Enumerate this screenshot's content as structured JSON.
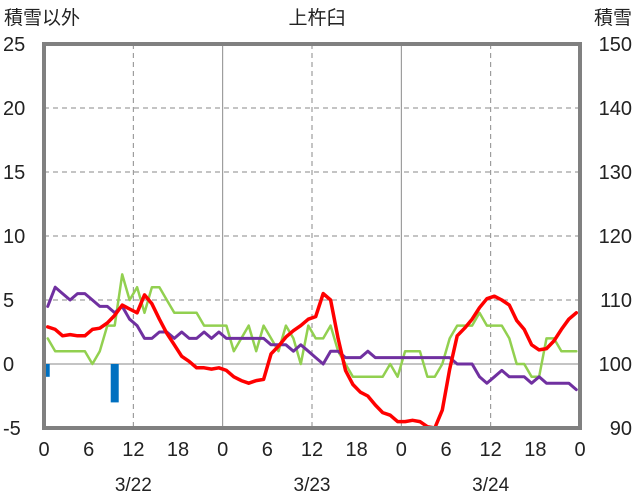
{
  "chart_data": {
    "type": "line",
    "title": "上杵臼",
    "ylabel_left": "積雪以外",
    "ylabel_right": "積雪",
    "ylim_left": [
      -5,
      25
    ],
    "ylim_right": [
      90,
      150
    ],
    "yticks_left": [
      25,
      20,
      15,
      10,
      5,
      0,
      -5
    ],
    "yticks_right": [
      150,
      140,
      130,
      120,
      110,
      100,
      90
    ],
    "x_hours_range": [
      0,
      72
    ],
    "xtick_labels": [
      "0",
      "6",
      "12",
      "18",
      "0",
      "6",
      "12",
      "18",
      "0",
      "6",
      "12",
      "18",
      "0"
    ],
    "date_labels": [
      "3/22",
      "3/23",
      "3/24"
    ],
    "grid": true,
    "colors": {
      "temperature": "#ff0000",
      "snow_depth": "#92d050",
      "wind": "#7030a0",
      "precipitation": "#0070c0",
      "frame": "#808080"
    },
    "series": [
      {
        "key": "temperature",
        "axis": "left",
        "x": [
          0,
          1,
          2,
          3,
          4,
          5,
          6,
          7,
          8,
          9,
          10,
          11,
          12,
          13,
          14,
          15,
          16,
          17,
          18,
          19,
          20,
          21,
          22,
          23,
          24,
          25,
          26,
          27,
          28,
          29,
          30,
          31,
          32,
          33,
          34,
          35,
          36,
          37,
          38,
          39,
          40,
          41,
          42,
          43,
          44,
          45,
          46,
          47,
          48,
          49,
          50,
          51,
          52,
          53,
          54,
          55,
          56,
          57,
          58,
          59,
          60,
          61,
          62,
          63,
          64,
          65,
          66,
          67,
          68,
          69,
          70,
          71
        ],
        "values": [
          2.9,
          2.7,
          2.2,
          2.3,
          2.2,
          2.2,
          2.7,
          2.8,
          3.2,
          3.8,
          4.6,
          4.3,
          4.0,
          5.4,
          4.7,
          3.5,
          2.4,
          1.5,
          0.6,
          0.2,
          -0.3,
          -0.3,
          -0.4,
          -0.3,
          -0.5,
          -1.0,
          -1.3,
          -1.5,
          -1.3,
          -1.2,
          0.8,
          1.4,
          2.1,
          2.6,
          3.0,
          3.5,
          3.7,
          5.5,
          5.0,
          2.0,
          -0.5,
          -1.6,
          -2.2,
          -2.5,
          -3.2,
          -3.8,
          -4.0,
          -4.5,
          -4.5,
          -4.4,
          -4.5,
          -4.9,
          -5.0,
          -3.6,
          -0.4,
          2.2,
          2.8,
          3.5,
          4.4,
          5.1,
          5.3,
          5.0,
          4.6,
          3.4,
          2.7,
          1.5,
          1.1,
          1.2,
          1.8,
          2.7,
          3.5,
          4.0
        ]
      },
      {
        "key": "snow_depth",
        "axis": "right",
        "x": [
          0,
          1,
          2,
          3,
          4,
          5,
          6,
          7,
          8,
          9,
          10,
          11,
          12,
          13,
          14,
          15,
          16,
          17,
          18,
          19,
          20,
          21,
          22,
          23,
          24,
          25,
          26,
          27,
          28,
          29,
          30,
          31,
          32,
          33,
          34,
          35,
          36,
          37,
          38,
          39,
          40,
          41,
          42,
          43,
          44,
          45,
          46,
          47,
          48,
          49,
          50,
          51,
          52,
          53,
          54,
          55,
          56,
          57,
          58,
          59,
          60,
          61,
          62,
          63,
          64,
          65,
          66,
          67,
          68,
          69,
          70,
          71
        ],
        "values": [
          104,
          102,
          102,
          102,
          102,
          102,
          100,
          102,
          106,
          106,
          114,
          110,
          112,
          108,
          112,
          112,
          110,
          108,
          108,
          108,
          108,
          106,
          106,
          106,
          106,
          102,
          104,
          106,
          102,
          106,
          104,
          102,
          106,
          104,
          100,
          106,
          104,
          104,
          106,
          102,
          100,
          98,
          98,
          98,
          98,
          98,
          100,
          98,
          102,
          102,
          102,
          98,
          98,
          100,
          104,
          106,
          106,
          106,
          108,
          106,
          106,
          106,
          104,
          100,
          100,
          98,
          98,
          104,
          104,
          102,
          102,
          102
        ]
      },
      {
        "key": "wind",
        "axis": "left",
        "x": [
          0,
          1,
          2,
          3,
          4,
          5,
          6,
          7,
          8,
          9,
          10,
          11,
          12,
          13,
          14,
          15,
          16,
          17,
          18,
          19,
          20,
          21,
          22,
          23,
          24,
          25,
          26,
          27,
          28,
          29,
          30,
          31,
          32,
          33,
          34,
          35,
          36,
          37,
          38,
          39,
          40,
          41,
          42,
          43,
          44,
          45,
          46,
          47,
          48,
          49,
          50,
          51,
          52,
          53,
          54,
          55,
          56,
          57,
          58,
          59,
          60,
          61,
          62,
          63,
          64,
          65,
          66,
          67,
          68,
          69,
          70,
          71
        ],
        "values": [
          4.5,
          6.0,
          5.5,
          5.0,
          5.5,
          5.5,
          5.0,
          4.5,
          4.5,
          4.0,
          4.5,
          3.5,
          3.0,
          2.0,
          2.0,
          2.5,
          2.5,
          2.0,
          2.5,
          2.0,
          2.0,
          2.5,
          2.0,
          2.5,
          2.0,
          2.0,
          2.0,
          2.0,
          2.0,
          2.0,
          1.5,
          1.5,
          1.5,
          1.0,
          1.5,
          1.0,
          0.5,
          0.0,
          1.0,
          1.0,
          0.5,
          0.5,
          0.5,
          1.0,
          0.5,
          0.5,
          0.5,
          0.5,
          0.5,
          0.5,
          0.5,
          0.5,
          0.5,
          0.5,
          0.5,
          0.0,
          0.0,
          0.0,
          -1.0,
          -1.5,
          -1.0,
          -0.5,
          -1.0,
          -1.0,
          -1.0,
          -1.5,
          -1.0,
          -1.5,
          -1.5,
          -1.5,
          -1.5,
          -2.0
        ]
      },
      {
        "key": "precipitation",
        "type": "bar",
        "axis": "left",
        "x": [
          0,
          9
        ],
        "values": [
          -1.0,
          -3.0
        ]
      }
    ]
  }
}
